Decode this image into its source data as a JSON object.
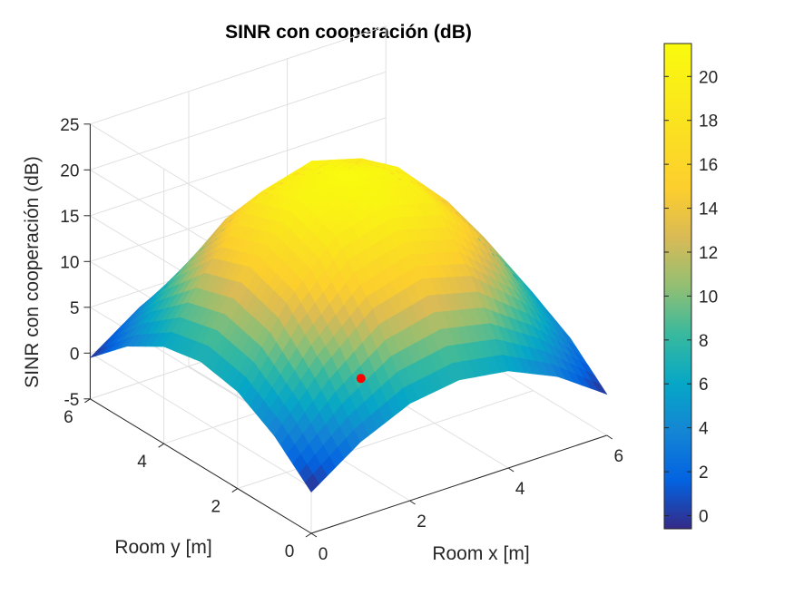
{
  "chart_data": {
    "type": "surface",
    "title": "SINR con cooperación (dB)",
    "xlabel": "Room x [m]",
    "ylabel": "Room y [m]",
    "zlabel": "SINR con cooperación (dB)",
    "xlim": [
      0,
      6
    ],
    "ylim": [
      0,
      6
    ],
    "zlim": [
      -5,
      25
    ],
    "xticks": [
      "0",
      "2",
      "4",
      "6"
    ],
    "yticks": [
      "0",
      "2",
      "4",
      "6"
    ],
    "zticks": [
      "-5",
      "0",
      "5",
      "10",
      "15",
      "20",
      "25"
    ],
    "grid": true,
    "colormap": "parula",
    "colorbar": {
      "range": [
        -0.6,
        21.5
      ],
      "ticks": [
        "0",
        "2",
        "4",
        "6",
        "8",
        "10",
        "12",
        "14",
        "16",
        "18",
        "20"
      ],
      "placement": "right"
    },
    "surface_samples": {
      "x": [
        0,
        1,
        2,
        3,
        4,
        5,
        6
      ],
      "y": [
        0,
        1,
        2,
        3,
        4,
        5,
        6
      ],
      "z": [
        [
          -0.5,
          3.2,
          5.6,
          6.4,
          5.6,
          3.2,
          -0.5
        ],
        [
          3.2,
          9.0,
          13.5,
          15.0,
          13.5,
          9.0,
          3.2
        ],
        [
          5.6,
          13.5,
          19.0,
          20.5,
          19.0,
          13.5,
          5.6
        ],
        [
          6.4,
          15.0,
          20.5,
          21.5,
          20.5,
          15.0,
          6.4
        ],
        [
          5.6,
          13.5,
          19.0,
          20.5,
          19.0,
          13.5,
          5.6
        ],
        [
          3.2,
          9.0,
          13.5,
          15.0,
          13.5,
          9.0,
          3.2
        ],
        [
          -0.5,
          3.2,
          5.6,
          6.4,
          5.6,
          3.2,
          -0.5
        ]
      ]
    },
    "marker": {
      "x": 4.0,
      "y": 4.0,
      "z": -5,
      "color": "#ff0000"
    }
  }
}
